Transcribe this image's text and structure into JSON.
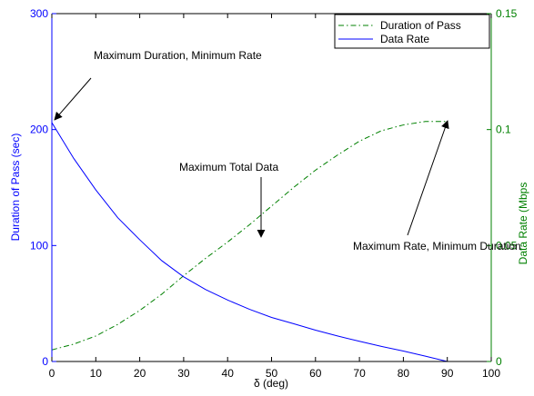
{
  "chart_data": {
    "type": "line",
    "xlabel": "δ (deg)",
    "xlim": [
      0,
      100
    ],
    "xticks": [
      0,
      10,
      20,
      30,
      40,
      50,
      60,
      70,
      80,
      90,
      100
    ],
    "left_axis": {
      "label": "Duration of Pass (sec)",
      "range": [
        0,
        300
      ],
      "ticks": [
        0,
        100,
        200,
        300
      ],
      "color": "#0000ff"
    },
    "right_axis": {
      "label": "Data Rate (Mbps",
      "range": [
        0,
        0.15
      ],
      "ticks": [
        "0",
        "0.05",
        "0.1",
        "0.15"
      ],
      "tick_values": [
        0,
        0.05,
        0.1,
        0.15
      ],
      "color": "#008000"
    },
    "series": [
      {
        "name": "Duration of Pass",
        "axis": "left",
        "color": "#008000",
        "style": "dash-dot",
        "x": [
          0,
          5,
          10,
          15,
          20,
          25,
          30,
          35,
          40,
          45,
          50,
          55,
          60,
          65,
          70,
          75,
          80,
          85,
          90
        ],
        "y": [
          10,
          15,
          22,
          32,
          44,
          58,
          74,
          89,
          103,
          118,
          134,
          150,
          165,
          178,
          190,
          199,
          204,
          207,
          207
        ]
      },
      {
        "name": "Data Rate",
        "axis": "right",
        "color": "#0000ff",
        "style": "solid",
        "x": [
          0,
          5,
          10,
          15,
          20,
          25,
          30,
          35,
          40,
          45,
          50,
          55,
          60,
          65,
          70,
          75,
          80,
          85,
          90
        ],
        "y": [
          0.103,
          0.0875,
          0.074,
          0.062,
          0.0525,
          0.0435,
          0.0365,
          0.031,
          0.0265,
          0.0225,
          0.019,
          0.0163,
          0.0135,
          0.011,
          0.0087,
          0.0065,
          0.0045,
          0.0023,
          0.0
        ]
      }
    ],
    "legend": {
      "placement": "top-right",
      "entries": [
        "Duration of Pass",
        "Data Rate"
      ]
    },
    "annotations": [
      {
        "text": "Maximum Duration, Minimum Rate",
        "target_x": 0,
        "target_y": 207
      },
      {
        "text": "Maximum Total Data",
        "target_x": 41,
        "target_y": 101
      },
      {
        "text": "Maximum Rate, Minimum Duration",
        "target_x": 89.5,
        "target_y": 206
      }
    ],
    "grid": false
  }
}
